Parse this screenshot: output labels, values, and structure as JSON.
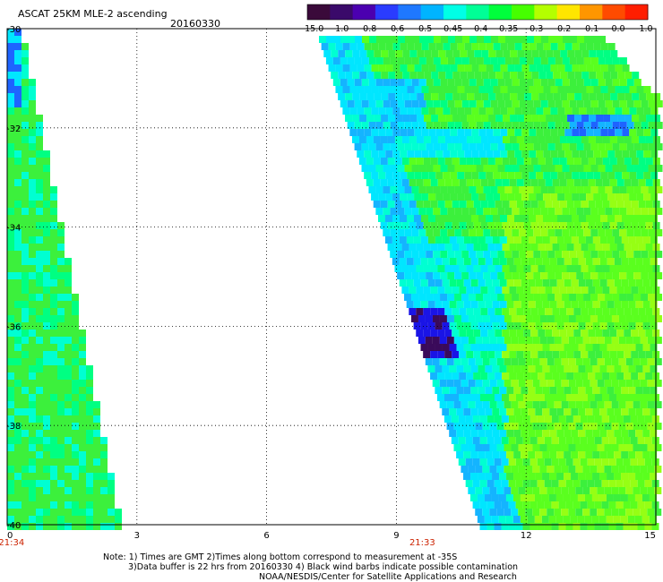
{
  "header": {
    "title": "ASCAT 25KM MLE-2 ascending",
    "date": "20160330"
  },
  "colorbar": {
    "labels": [
      "-15.0",
      "-1.0",
      "-0.8",
      "-0.6",
      "-0.5",
      "-0.45",
      "-0.4",
      "-0.35",
      "-0.3",
      "-0.2",
      "-0.1",
      "0.0",
      "1.0"
    ],
    "colors": [
      "#3a0a3a",
      "#3a0a6a",
      "#4b00b0",
      "#2a3cff",
      "#1f78ff",
      "#00b4ff",
      "#00ffe6",
      "#00ff96",
      "#00ff3c",
      "#46ff00",
      "#b4ff00",
      "#ffe600",
      "#ff9600",
      "#ff4b00",
      "#ff1e00"
    ]
  },
  "axes": {
    "y_ticks": [
      "-30",
      "-32",
      "-34",
      "-36",
      "-38",
      "-40"
    ],
    "x_ticks": [
      "0",
      "3",
      "6",
      "9",
      "12",
      "15"
    ],
    "lat_range": [
      -40,
      -30
    ],
    "lon_range": [
      0,
      15
    ]
  },
  "swaths": [
    {
      "time": "21:34",
      "time_lon": 0.1
    },
    {
      "time": "21:33",
      "time_lon": 9.6
    }
  ],
  "notes": {
    "line1": "Note: 1) Times are GMT 2)Times along bottom correspond to measurement at -35S",
    "line2": "3)Data buffer is 22 hrs from 20160330 4) Black wind barbs indicate possible contamination",
    "line3": "NOAA/NESDIS/Center for Satellite Applications and Research"
  },
  "style": {
    "time_color": "#cc2200",
    "base_green": "#3cf03c"
  }
}
